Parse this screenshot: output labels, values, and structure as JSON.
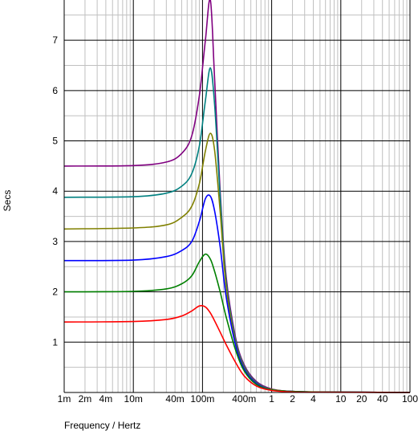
{
  "chart_data": {
    "type": "line",
    "xlabel": "Frequency / Hertz",
    "ylabel": "Secs",
    "x_scale": "log",
    "xlim": [
      0.001,
      100
    ],
    "ylim": [
      0,
      7.8
    ],
    "grid": true,
    "legend": "none",
    "x_ticks": [
      {
        "value": 0.001,
        "label": "1m"
      },
      {
        "value": 0.002,
        "label": "2m"
      },
      {
        "value": 0.004,
        "label": "4m"
      },
      {
        "value": 0.01,
        "label": "10m"
      },
      {
        "value": 0.04,
        "label": "40m"
      },
      {
        "value": 0.1,
        "label": "100m"
      },
      {
        "value": 0.4,
        "label": "400m"
      },
      {
        "value": 1,
        "label": "1"
      },
      {
        "value": 2,
        "label": "2"
      },
      {
        "value": 4,
        "label": "4"
      },
      {
        "value": 10,
        "label": "10"
      },
      {
        "value": 20,
        "label": "20"
      },
      {
        "value": 40,
        "label": "40"
      },
      {
        "value": 100,
        "label": "100"
      }
    ],
    "y_ticks": [
      {
        "value": 1,
        "label": "1"
      },
      {
        "value": 2,
        "label": "2"
      },
      {
        "value": 3,
        "label": "3"
      },
      {
        "value": 4,
        "label": "4"
      },
      {
        "value": 5,
        "label": "5"
      },
      {
        "value": 6,
        "label": "6"
      },
      {
        "value": 7,
        "label": "7"
      }
    ],
    "x": [
      0.001,
      0.01,
      0.03,
      0.05,
      0.07,
      0.09,
      0.11,
      0.13,
      0.15,
      0.18,
      0.22,
      0.3,
      0.4,
      0.6,
      1,
      2,
      5,
      100
    ],
    "series": [
      {
        "color": "#800080",
        "values": [
          4.5,
          4.51,
          4.58,
          4.75,
          5.1,
          5.9,
          7.0,
          7.8,
          6.2,
          4.0,
          2.3,
          1.1,
          0.55,
          0.22,
          0.07,
          0.02,
          0.01,
          0.0
        ]
      },
      {
        "color": "#008080",
        "values": [
          3.88,
          3.89,
          3.96,
          4.1,
          4.35,
          4.9,
          5.8,
          6.45,
          5.7,
          3.9,
          2.2,
          1.05,
          0.52,
          0.2,
          0.06,
          0.02,
          0.01,
          0.0
        ]
      },
      {
        "color": "#808000",
        "values": [
          3.25,
          3.27,
          3.33,
          3.48,
          3.7,
          4.15,
          4.8,
          5.15,
          4.8,
          3.6,
          2.1,
          1.0,
          0.5,
          0.19,
          0.06,
          0.02,
          0.01,
          0.0
        ]
      },
      {
        "color": "#0000ff",
        "values": [
          2.62,
          2.63,
          2.7,
          2.82,
          3.0,
          3.4,
          3.85,
          3.9,
          3.6,
          2.9,
          1.9,
          0.95,
          0.47,
          0.18,
          0.05,
          0.02,
          0.01,
          0.0
        ]
      },
      {
        "color": "#008000",
        "values": [
          2.0,
          2.01,
          2.06,
          2.16,
          2.32,
          2.6,
          2.75,
          2.65,
          2.4,
          2.0,
          1.5,
          0.85,
          0.43,
          0.16,
          0.05,
          0.02,
          0.01,
          0.0
        ]
      },
      {
        "color": "#ff0000",
        "values": [
          1.4,
          1.41,
          1.45,
          1.52,
          1.62,
          1.72,
          1.7,
          1.58,
          1.42,
          1.2,
          0.95,
          0.6,
          0.33,
          0.13,
          0.04,
          0.01,
          0.005,
          0.0
        ]
      }
    ]
  }
}
